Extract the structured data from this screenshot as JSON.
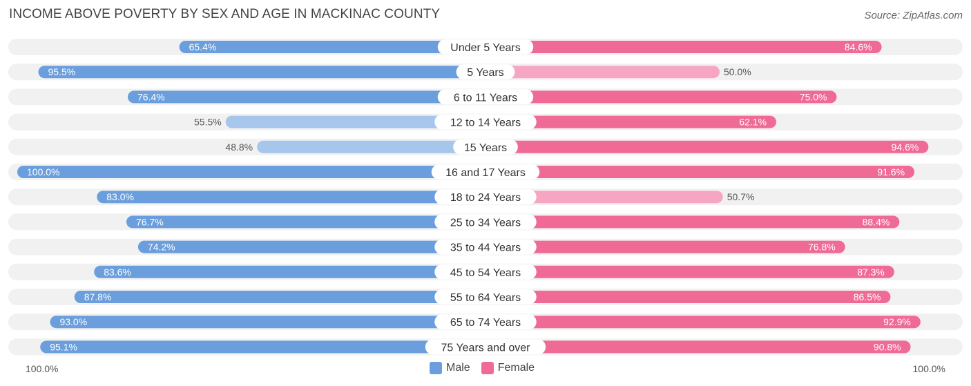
{
  "title": "INCOME ABOVE POVERTY BY SEX AND AGE IN MACKINAC COUNTY",
  "source": "Source: ZipAtlas.com",
  "axis": {
    "left_label": "100.0%",
    "right_label": "100.0%"
  },
  "legend": {
    "male_label": "Male",
    "female_label": "Female"
  },
  "colors": {
    "male_dark": "#6a9edc",
    "male_light": "#a6c6ec",
    "female_dark": "#f06a96",
    "female_light": "#f6a6c2",
    "row_bg": "#f1f1f1"
  },
  "chart_data": {
    "type": "bar",
    "orientation": "horizontal-diverging",
    "categories": [
      "Under 5 Years",
      "5 Years",
      "6 to 11 Years",
      "12 to 14 Years",
      "15 Years",
      "16 and 17 Years",
      "18 to 24 Years",
      "25 to 34 Years",
      "35 to 44 Years",
      "45 to 54 Years",
      "55 to 64 Years",
      "65 to 74 Years",
      "75 Years and over"
    ],
    "series": [
      {
        "name": "Male",
        "values": [
          65.4,
          95.5,
          76.4,
          55.5,
          48.8,
          100.0,
          83.0,
          76.7,
          74.2,
          83.6,
          87.8,
          93.0,
          95.1
        ],
        "labels": [
          "65.4%",
          "95.5%",
          "76.4%",
          "55.5%",
          "48.8%",
          "100.0%",
          "83.0%",
          "76.7%",
          "74.2%",
          "83.6%",
          "87.8%",
          "93.0%",
          "95.1%"
        ]
      },
      {
        "name": "Female",
        "values": [
          84.6,
          50.0,
          75.0,
          62.1,
          94.6,
          91.6,
          50.7,
          88.4,
          76.8,
          87.3,
          86.5,
          92.9,
          90.8
        ],
        "labels": [
          "84.6%",
          "50.0%",
          "75.0%",
          "62.1%",
          "94.6%",
          "91.6%",
          "50.7%",
          "88.4%",
          "76.8%",
          "87.3%",
          "86.5%",
          "92.9%",
          "90.8%"
        ]
      }
    ],
    "xlim": [
      0,
      100
    ],
    "legend_position": "bottom-center"
  }
}
